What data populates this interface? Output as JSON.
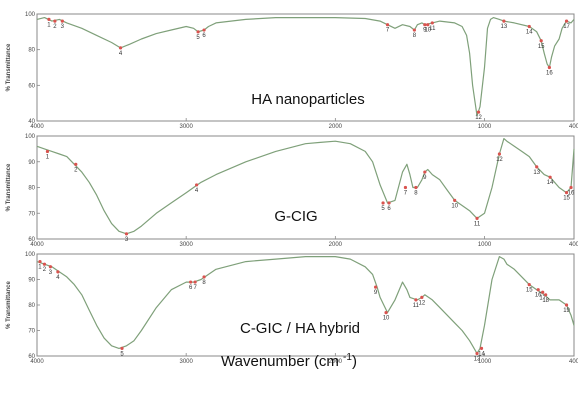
{
  "xlabel": "Wavenumber (cm -1)",
  "chart_data": [
    {
      "type": "line",
      "title": "HA  nanoparticles",
      "ylabel": "% Transmittance",
      "xlim": [
        4000,
        400
      ],
      "ylim": [
        40,
        100
      ],
      "xticks": [
        4000,
        3000,
        2000,
        1000,
        400
      ],
      "yticks": [
        40,
        60,
        80,
        100
      ],
      "color": "#7fa07a",
      "x": [
        4000,
        3950,
        3900,
        3850,
        3800,
        3700,
        3600,
        3500,
        3440,
        3380,
        3300,
        3200,
        3100,
        3000,
        2950,
        2920,
        2880,
        2850,
        2800,
        2600,
        2400,
        2200,
        2000,
        1800,
        1700,
        1650,
        1600,
        1550,
        1500,
        1470,
        1450,
        1420,
        1400,
        1350,
        1300,
        1200,
        1150,
        1120,
        1100,
        1080,
        1050,
        1030,
        1000,
        980,
        960,
        940,
        900,
        870,
        800,
        700,
        650,
        620,
        600,
        580,
        565,
        550,
        530,
        500,
        480,
        450,
        420,
        400
      ],
      "y": [
        97,
        98,
        96,
        97,
        95,
        92,
        88,
        84,
        81,
        83,
        86,
        89,
        91,
        93,
        92,
        90,
        91,
        93,
        95,
        97,
        98,
        98,
        98,
        97.5,
        96,
        94,
        92,
        94,
        93,
        91,
        94,
        95,
        94,
        95,
        96,
        95,
        93,
        88,
        78,
        60,
        43,
        48,
        70,
        92,
        97,
        98,
        97,
        96,
        95,
        93,
        90,
        85,
        78,
        72,
        70,
        76,
        82,
        86,
        92,
        96,
        95,
        97
      ],
      "peak_labels": [
        {
          "text": "1",
          "x": 3920,
          "y": 97
        },
        {
          "text": "2",
          "x": 3880,
          "y": 96
        },
        {
          "text": "3",
          "x": 3830,
          "y": 96
        },
        {
          "text": "4",
          "x": 3440,
          "y": 81
        },
        {
          "text": "5",
          "x": 2920,
          "y": 90
        },
        {
          "text": "6",
          "x": 2880,
          "y": 91
        },
        {
          "text": "7",
          "x": 1650,
          "y": 94
        },
        {
          "text": "8",
          "x": 1470,
          "y": 91
        },
        {
          "text": "9",
          "x": 1400,
          "y": 94
        },
        {
          "text": "10",
          "x": 1380,
          "y": 94
        },
        {
          "text": "11",
          "x": 1350,
          "y": 95
        },
        {
          "text": "12",
          "x": 1040,
          "y": 45
        },
        {
          "text": "13",
          "x": 870,
          "y": 96
        },
        {
          "text": "14",
          "x": 700,
          "y": 93
        },
        {
          "text": "15",
          "x": 620,
          "y": 85
        },
        {
          "text": "16",
          "x": 565,
          "y": 70
        },
        {
          "text": "17",
          "x": 450,
          "y": 96
        }
      ]
    },
    {
      "type": "line",
      "title": "G-CIG",
      "ylabel": "% Transmittance",
      "xlim": [
        4000,
        400
      ],
      "ylim": [
        60,
        100
      ],
      "xticks": [
        4000,
        3000,
        2000,
        1000,
        400
      ],
      "yticks": [
        60,
        70,
        80,
        90,
        100
      ],
      "color": "#7fa07a",
      "x": [
        4000,
        3950,
        3900,
        3850,
        3800,
        3750,
        3700,
        3650,
        3600,
        3550,
        3500,
        3450,
        3400,
        3350,
        3300,
        3200,
        3100,
        3000,
        2950,
        2900,
        2800,
        2600,
        2400,
        2200,
        2100,
        2000,
        1900,
        1800,
        1750,
        1700,
        1650,
        1600,
        1550,
        1520,
        1500,
        1480,
        1450,
        1420,
        1400,
        1380,
        1350,
        1300,
        1250,
        1200,
        1150,
        1100,
        1050,
        1000,
        950,
        900,
        870,
        850,
        800,
        750,
        700,
        650,
        600,
        560,
        500,
        450,
        420,
        400
      ],
      "y": [
        96,
        95,
        94,
        93,
        92,
        89,
        86,
        82,
        77,
        71,
        66,
        63,
        62,
        63,
        65,
        70,
        74,
        78,
        80,
        82,
        85,
        90,
        94,
        97,
        97.5,
        98,
        97,
        94,
        90,
        81,
        74,
        75,
        86,
        89,
        85,
        80,
        80,
        83,
        86,
        87,
        85,
        83,
        79,
        75,
        73,
        71,
        68,
        70,
        80,
        93,
        99,
        98,
        96,
        94,
        92,
        88,
        85,
        84,
        80,
        78,
        80,
        95
      ],
      "peak_labels": [
        {
          "text": "1",
          "x": 3930,
          "y": 94
        },
        {
          "text": "2",
          "x": 3740,
          "y": 89
        },
        {
          "text": "3",
          "x": 3400,
          "y": 62
        },
        {
          "text": "4",
          "x": 2930,
          "y": 81
        },
        {
          "text": "5",
          "x": 1680,
          "y": 74
        },
        {
          "text": "6",
          "x": 1640,
          "y": 74
        },
        {
          "text": "7",
          "x": 1530,
          "y": 80
        },
        {
          "text": "8",
          "x": 1460,
          "y": 80
        },
        {
          "text": "9",
          "x": 1400,
          "y": 86
        },
        {
          "text": "10",
          "x": 1200,
          "y": 75
        },
        {
          "text": "11",
          "x": 1050,
          "y": 68
        },
        {
          "text": "12",
          "x": 900,
          "y": 93
        },
        {
          "text": "13",
          "x": 650,
          "y": 88
        },
        {
          "text": "14",
          "x": 560,
          "y": 84
        },
        {
          "text": "15",
          "x": 450,
          "y": 78
        },
        {
          "text": "16",
          "x": 420,
          "y": 80
        }
      ]
    },
    {
      "type": "line",
      "title": "C-GIC /  HA hybrid",
      "ylabel": "% Transmittance",
      "xlim": [
        4000,
        400
      ],
      "ylim": [
        60,
        100
      ],
      "xticks": [
        4000,
        3000,
        2000,
        1000,
        400
      ],
      "yticks": [
        60,
        70,
        80,
        90,
        100
      ],
      "color": "#7fa07a",
      "x": [
        4000,
        3950,
        3900,
        3850,
        3800,
        3750,
        3700,
        3650,
        3600,
        3550,
        3500,
        3450,
        3400,
        3350,
        3300,
        3200,
        3100,
        3000,
        2950,
        2900,
        2850,
        2800,
        2600,
        2400,
        2200,
        2000,
        1900,
        1800,
        1750,
        1720,
        1700,
        1650,
        1600,
        1550,
        1520,
        1500,
        1450,
        1420,
        1400,
        1350,
        1300,
        1250,
        1200,
        1150,
        1100,
        1080,
        1050,
        1030,
        1000,
        950,
        900,
        870,
        850,
        800,
        750,
        700,
        650,
        600,
        560,
        500,
        450,
        420,
        400
      ],
      "y": [
        97,
        96,
        95,
        93,
        91,
        88,
        84,
        78,
        72,
        67,
        64,
        63,
        64,
        66,
        70,
        79,
        86,
        89,
        89,
        90,
        92,
        94,
        97,
        98,
        99,
        99,
        98,
        95,
        92,
        87,
        83,
        77,
        82,
        89,
        86,
        83,
        82,
        83,
        84,
        82,
        79,
        76,
        73,
        70,
        66,
        64,
        61,
        63,
        72,
        90,
        99,
        98,
        96,
        94,
        91,
        88,
        86,
        84,
        82,
        82,
        80,
        76,
        72
      ],
      "peak_labels": [
        {
          "text": "1",
          "x": 3980,
          "y": 97
        },
        {
          "text": "2",
          "x": 3950,
          "y": 96
        },
        {
          "text": "3",
          "x": 3910,
          "y": 95
        },
        {
          "text": "4",
          "x": 3860,
          "y": 93
        },
        {
          "text": "5",
          "x": 3430,
          "y": 63
        },
        {
          "text": "6",
          "x": 2970,
          "y": 89
        },
        {
          "text": "7",
          "x": 2940,
          "y": 89
        },
        {
          "text": "8",
          "x": 2880,
          "y": 91
        },
        {
          "text": "9",
          "x": 1730,
          "y": 87
        },
        {
          "text": "10",
          "x": 1660,
          "y": 77
        },
        {
          "text": "11",
          "x": 1460,
          "y": 82
        },
        {
          "text": "12",
          "x": 1420,
          "y": 83
        },
        {
          "text": "13",
          "x": 1050,
          "y": 61
        },
        {
          "text": "14",
          "x": 1020,
          "y": 63
        },
        {
          "text": "15",
          "x": 700,
          "y": 88
        },
        {
          "text": "16",
          "x": 640,
          "y": 86
        },
        {
          "text": "17",
          "x": 610,
          "y": 85
        },
        {
          "text": "18",
          "x": 590,
          "y": 84
        },
        {
          "text": "19",
          "x": 450,
          "y": 80
        }
      ]
    }
  ]
}
